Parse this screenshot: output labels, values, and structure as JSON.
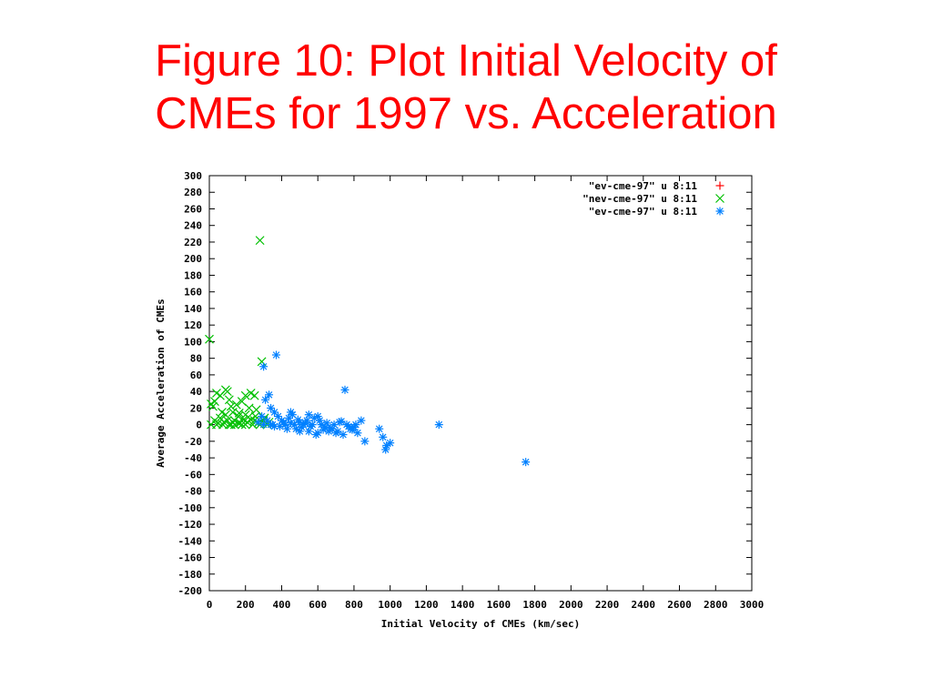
{
  "slide": {
    "title_line1": "Figure 10: Plot Initial Velocity of",
    "title_line2": "CMEs for 1997 vs. Acceleration"
  },
  "chart_data": {
    "type": "scatter",
    "title": "",
    "xlabel": "Initial Velocity of CMEs (km/sec)",
    "ylabel": "Average Acceleration of CMEs",
    "xlim": [
      0,
      3000
    ],
    "ylim": [
      -200,
      300
    ],
    "xticks": [
      0,
      200,
      400,
      600,
      800,
      1000,
      1200,
      1400,
      1600,
      1800,
      2000,
      2200,
      2400,
      2600,
      2800,
      3000
    ],
    "yticks": [
      -200,
      -180,
      -160,
      -140,
      -120,
      -100,
      -80,
      -60,
      -40,
      -20,
      0,
      20,
      40,
      60,
      80,
      100,
      120,
      140,
      160,
      180,
      200,
      220,
      240,
      260,
      280,
      300
    ],
    "grid": false,
    "legend_position": "top-right",
    "series": [
      {
        "name": "\"ev-cme-97\" u 8:11",
        "marker": "plus",
        "color": "#ff0000",
        "points": []
      },
      {
        "name": "\"nev-cme-97\" u 8:11",
        "marker": "cross",
        "color": "#00c000",
        "points": [
          [
            0,
            103
          ],
          [
            280,
            222
          ],
          [
            290,
            76
          ],
          [
            10,
            25
          ],
          [
            20,
            22
          ],
          [
            30,
            28
          ],
          [
            40,
            38
          ],
          [
            60,
            35
          ],
          [
            90,
            42
          ],
          [
            100,
            40
          ],
          [
            110,
            30
          ],
          [
            120,
            22
          ],
          [
            150,
            24
          ],
          [
            130,
            15
          ],
          [
            180,
            28
          ],
          [
            200,
            35
          ],
          [
            230,
            38
          ],
          [
            250,
            35
          ],
          [
            220,
            20
          ],
          [
            260,
            18
          ],
          [
            200,
            12
          ],
          [
            160,
            10
          ],
          [
            140,
            5
          ],
          [
            100,
            5
          ],
          [
            80,
            3
          ],
          [
            60,
            8
          ],
          [
            50,
            2
          ],
          [
            30,
            5
          ],
          [
            10,
            0
          ],
          [
            120,
            0
          ],
          [
            180,
            0
          ],
          [
            210,
            3
          ],
          [
            240,
            0
          ],
          [
            270,
            2
          ],
          [
            300,
            5
          ],
          [
            320,
            0
          ],
          [
            190,
            6
          ],
          [
            170,
            2
          ],
          [
            230,
            6
          ],
          [
            90,
            12
          ],
          [
            70,
            15
          ],
          [
            110,
            0
          ],
          [
            140,
            0
          ],
          [
            160,
            2
          ],
          [
            200,
            0
          ],
          [
            250,
            5
          ],
          [
            280,
            0
          ],
          [
            305,
            8
          ],
          [
            40,
            0
          ],
          [
            75,
            0
          ],
          [
            130,
            3
          ],
          [
            255,
            10
          ],
          [
            330,
            3
          ],
          [
            165,
            14
          ],
          [
            215,
            9
          ]
        ]
      },
      {
        "name": "\"ev-cme-97\" u 8:11",
        "marker": "star",
        "color": "#0080ff",
        "points": [
          [
            370,
            84
          ],
          [
            300,
            70
          ],
          [
            330,
            36
          ],
          [
            310,
            30
          ],
          [
            340,
            20
          ],
          [
            360,
            15
          ],
          [
            380,
            10
          ],
          [
            400,
            5
          ],
          [
            420,
            0
          ],
          [
            440,
            8
          ],
          [
            460,
            12
          ],
          [
            480,
            -5
          ],
          [
            500,
            3
          ],
          [
            520,
            0
          ],
          [
            540,
            5
          ],
          [
            560,
            -2
          ],
          [
            580,
            8
          ],
          [
            600,
            10
          ],
          [
            620,
            0
          ],
          [
            640,
            -3
          ],
          [
            660,
            -8
          ],
          [
            680,
            -5
          ],
          [
            700,
            -10
          ],
          [
            720,
            3
          ],
          [
            740,
            -12
          ],
          [
            760,
            0
          ],
          [
            780,
            -5
          ],
          [
            800,
            -3
          ],
          [
            820,
            -10
          ],
          [
            840,
            5
          ],
          [
            860,
            -20
          ],
          [
            940,
            -5
          ],
          [
            960,
            -15
          ],
          [
            980,
            -25
          ],
          [
            1000,
            -22
          ],
          [
            750,
            42
          ],
          [
            1270,
            0
          ],
          [
            1750,
            -45
          ],
          [
            350,
            0
          ],
          [
            390,
            -2
          ],
          [
            410,
            3
          ],
          [
            430,
            -5
          ],
          [
            450,
            2
          ],
          [
            470,
            0
          ],
          [
            490,
            6
          ],
          [
            510,
            -3
          ],
          [
            530,
            2
          ],
          [
            550,
            -8
          ],
          [
            570,
            0
          ],
          [
            590,
            -12
          ],
          [
            610,
            5
          ],
          [
            630,
            -6
          ],
          [
            650,
            2
          ],
          [
            670,
            -4
          ],
          [
            690,
            0
          ],
          [
            710,
            -8
          ],
          [
            730,
            4
          ],
          [
            770,
            -2
          ],
          [
            790,
            -6
          ],
          [
            810,
            0
          ],
          [
            320,
            5
          ],
          [
            340,
            0
          ],
          [
            300,
            0
          ],
          [
            270,
            3
          ],
          [
            290,
            10
          ],
          [
            360,
            -2
          ],
          [
            450,
            15
          ],
          [
            500,
            -8
          ],
          [
            550,
            12
          ],
          [
            600,
            -10
          ],
          [
            975,
            -30
          ]
        ]
      }
    ]
  }
}
